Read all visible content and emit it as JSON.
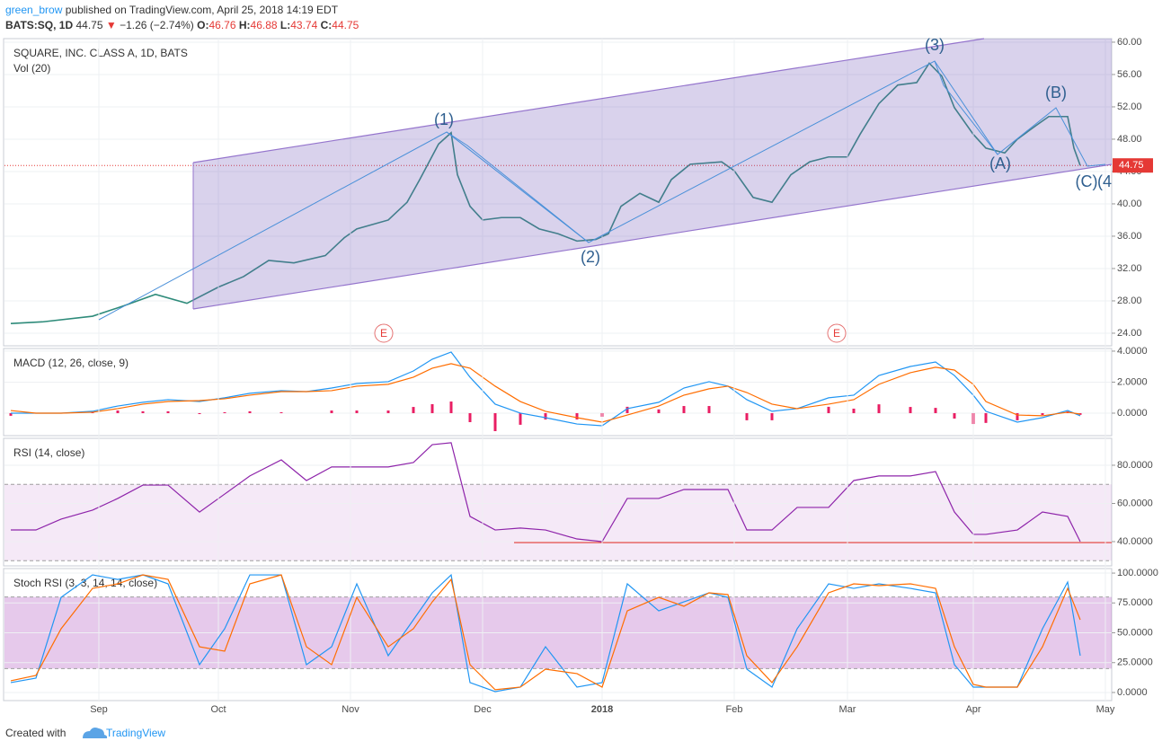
{
  "header": {
    "author": "green_brow",
    "published": "published on TradingView.com, April 25, 2018 14:19 EDT",
    "symbol": "BATS:SQ, 1D",
    "price": 44.75,
    "change": "−1.26 (−2.74%)",
    "ohlc": [
      {
        "label": "O:",
        "value": 46.76
      },
      {
        "label": "H:",
        "value": 46.88
      },
      {
        "label": "L:",
        "value": 43.74
      },
      {
        "label": "C:",
        "value": 44.75
      }
    ]
  },
  "footer": {
    "text": "Created with",
    "brand": "TradingView"
  },
  "chart_data": [
    {
      "type": "line",
      "title": "SQUARE, INC. CLASS A, 1D, BATS",
      "subtitle": "Vol (20)",
      "color": "#2e8b7a",
      "x": [
        1,
        6,
        14,
        19,
        24,
        29,
        34,
        38,
        42,
        46,
        51,
        54,
        56,
        61,
        64,
        66,
        69,
        71,
        72,
        74,
        76,
        79,
        82,
        85,
        88,
        91,
        94,
        96,
        98,
        101,
        104,
        106,
        109,
        114,
        116,
        119,
        122,
        125,
        128,
        131,
        134,
        136,
        139,
        142,
        145,
        147,
        149,
        151,
        154,
        156,
        159,
        161,
        164,
        166,
        169,
        170,
        171
      ],
      "values": [
        25.2,
        25.4,
        26.1,
        27.4,
        28.8,
        27.7,
        29.7,
        31,
        33,
        32.7,
        33.6,
        35.8,
        36.9,
        38,
        40.2,
        43,
        47.4,
        48.8,
        43.6,
        39.7,
        38,
        38.3,
        38.3,
        36.9,
        36.3,
        35.4,
        35.6,
        36.3,
        39.7,
        41.3,
        40.2,
        43,
        44.9,
        45.2,
        44.1,
        40.8,
        40.2,
        43.6,
        45.2,
        45.8,
        45.8,
        48.6,
        52.4,
        54.7,
        55,
        57.4,
        55.8,
        51.9,
        48.6,
        46.9,
        46.3,
        48,
        49.7,
        50.8,
        50.8,
        46.9,
        44.75
      ],
      "xlim": [
        0,
        176
      ],
      "ylim": [
        22.44,
        60.44
      ],
      "yticks": [
        {
          "value": 24,
          "label": "24.00"
        },
        {
          "value": 28,
          "label": "28.00"
        },
        {
          "value": 32,
          "label": "32.00"
        },
        {
          "value": 36,
          "label": "36.00"
        },
        {
          "value": 40,
          "label": "40.00"
        },
        {
          "value": 44,
          "label": "44.00"
        },
        {
          "value": 48,
          "label": "48.00"
        },
        {
          "value": 52,
          "label": "52.00"
        },
        {
          "value": 56,
          "label": "56.00"
        },
        {
          "value": 60,
          "label": "60.00"
        }
      ],
      "last_value": 44.75,
      "grid": true,
      "annotations": [
        "(1)",
        "(2)",
        "(3)",
        "(A)",
        "(B)",
        "(C)",
        "(4",
        "E",
        "E"
      ]
    },
    {
      "type": "line",
      "title": "MACD (12, 26, close, 9)",
      "x": [
        1,
        5,
        9,
        14,
        18,
        22,
        26,
        31,
        35,
        39,
        44,
        48,
        52,
        56,
        61,
        65,
        68,
        71,
        74,
        78,
        82,
        86,
        91,
        95,
        99,
        104,
        108,
        112,
        115,
        118,
        122,
        126,
        131,
        135,
        139,
        144,
        148,
        151,
        154,
        156,
        161,
        165,
        169,
        171
      ],
      "series": [
        {
          "type": "bar",
          "color": "#e91e63",
          "values": [
            -0.17,
            0,
            0,
            0.06,
            0.17,
            0.12,
            0.12,
            -0.06,
            0.06,
            0.12,
            0.06,
            0,
            0.17,
            0.17,
            0.17,
            0.4,
            0.58,
            0.75,
            -0.58,
            -1.16,
            -0.75,
            -0.41,
            -0.41,
            -0.23,
            0.41,
            0.24,
            0.46,
            0.46,
            0,
            -0.46,
            -0.46,
            0,
            0.41,
            0.29,
            0.57,
            0.4,
            0.34,
            -0.35,
            -0.7,
            -0.63,
            -0.46,
            -0.12,
            0.11,
            -0.11
          ]
        },
        {
          "type": "line",
          "color": "#2196f3",
          "values": [
            0,
            0,
            0,
            0.12,
            0.46,
            0.7,
            0.87,
            0.75,
            0.99,
            1.28,
            1.45,
            1.39,
            1.62,
            1.91,
            2.03,
            2.72,
            3.48,
            3.94,
            2.32,
            0.58,
            0,
            -0.29,
            -0.7,
            -0.81,
            0.29,
            0.7,
            1.62,
            2.03,
            1.74,
            0.87,
            0.12,
            0.29,
            0.99,
            1.16,
            2.43,
            3.01,
            3.3,
            2.43,
            1.16,
            0.12,
            -0.58,
            -0.29,
            0.17,
            -0.17
          ]
        },
        {
          "type": "line",
          "color": "#ff6d00",
          "values": [
            0.17,
            0,
            0,
            0.06,
            0.29,
            0.58,
            0.75,
            0.81,
            0.93,
            1.16,
            1.39,
            1.39,
            1.45,
            1.74,
            1.86,
            2.32,
            2.9,
            3.19,
            2.9,
            1.74,
            0.75,
            0.12,
            -0.29,
            -0.58,
            -0.12,
            0.46,
            1.16,
            1.57,
            1.74,
            1.33,
            0.58,
            0.29,
            0.58,
            0.87,
            1.86,
            2.61,
            2.96,
            2.78,
            1.86,
            0.75,
            -0.12,
            -0.17,
            0.06,
            -0.06
          ]
        }
      ],
      "xlim": [
        0,
        176
      ],
      "ylim": [
        -1.45,
        4.17
      ],
      "yticks": [
        {
          "value": 0,
          "label": "0.0000"
        },
        {
          "value": 2,
          "label": "2.0000"
        },
        {
          "value": 4,
          "label": "4.0000"
        }
      ],
      "grid": true
    },
    {
      "type": "line",
      "title": "RSI (14, close)",
      "x": [
        1,
        5,
        9,
        14,
        18,
        22,
        26,
        31,
        35,
        39,
        44,
        48,
        52,
        56,
        61,
        65,
        68,
        71,
        74,
        78,
        82,
        86,
        91,
        95,
        99,
        104,
        108,
        112,
        115,
        118,
        122,
        126,
        131,
        135,
        139,
        144,
        148,
        151,
        154,
        156,
        161,
        165,
        169,
        171
      ],
      "series": [
        {
          "type": "line",
          "color": "#8e24aa",
          "values": [
            46.1,
            46.1,
            51.8,
            56.5,
            62.6,
            69.6,
            69.6,
            55.5,
            64.9,
            74.4,
            82.8,
            72.0,
            79.1,
            79.1,
            79.1,
            81.4,
            90.8,
            91.8,
            53.2,
            46.1,
            47.1,
            46.1,
            41.4,
            40.0,
            62.6,
            62.6,
            67.3,
            67.3,
            67.3,
            46.1,
            46.1,
            57.9,
            57.9,
            72.0,
            74.4,
            74.4,
            76.7,
            55.5,
            43.8,
            43.8,
            46.1,
            55.5,
            53.2,
            40.0
          ]
        }
      ],
      "xlim": [
        0,
        176
      ],
      "ylim": [
        27.3,
        94.1
      ],
      "band": [
        30,
        70
      ],
      "band_color": "rgba(156,39,176,0.10)",
      "hline": 39.5,
      "hline_from": 81,
      "hline_color": "#e53935",
      "yticks": [
        {
          "value": 40,
          "label": "40.0000"
        },
        {
          "value": 60,
          "label": "60.0000"
        },
        {
          "value": 80,
          "label": "80.0000"
        }
      ],
      "grid": true
    },
    {
      "type": "line",
      "title": "Stoch RSI (3, 3, 14, 14, close)",
      "x": [
        1,
        5,
        9,
        14,
        18,
        22,
        26,
        31,
        35,
        39,
        44,
        48,
        52,
        56,
        61,
        65,
        68,
        71,
        74,
        78,
        82,
        86,
        91,
        95,
        99,
        104,
        108,
        112,
        115,
        118,
        122,
        126,
        131,
        135,
        139,
        144,
        148,
        151,
        154,
        156,
        161,
        165,
        169,
        171
      ],
      "series": [
        {
          "type": "line",
          "color": "#2196f3",
          "values": [
            8.3,
            12,
            79.7,
            98.5,
            94.7,
            98.5,
            91,
            23.3,
            53.4,
            98.5,
            98.5,
            23.3,
            38.3,
            91,
            30.8,
            60.9,
            83.5,
            98.5,
            8.3,
            0.75,
            4.5,
            38.3,
            4.5,
            8.3,
            91,
            68.4,
            75.9,
            83.5,
            79.7,
            19.5,
            4.5,
            53.4,
            91,
            87.2,
            91,
            87.2,
            83.5,
            23.3,
            4.5,
            4.5,
            4.5,
            53.4,
            92.5,
            30.8
          ]
        },
        {
          "type": "line",
          "color": "#ff6d00",
          "values": [
            9.8,
            14.3,
            53.4,
            87.2,
            91,
            98.5,
            94.7,
            38.3,
            34.6,
            91,
            98.5,
            38.3,
            23.3,
            79.7,
            38.3,
            53.4,
            75.9,
            94.7,
            23.3,
            2.3,
            4.5,
            19.5,
            15.8,
            4.5,
            68.4,
            79.7,
            72.2,
            83.5,
            82,
            30.8,
            8.3,
            38.3,
            83.5,
            91,
            89.5,
            91,
            87.2,
            38.3,
            6.8,
            4.5,
            4.5,
            38.3,
            87.2,
            60.9
          ]
        }
      ],
      "xlim": [
        0,
        176
      ],
      "ylim": [
        -6.8,
        103.8
      ],
      "band": [
        20,
        80
      ],
      "band_color": "rgba(156,39,176,0.25)",
      "yticks": [
        {
          "value": 0,
          "label": "0.0000"
        },
        {
          "value": 25,
          "label": "25.0000"
        },
        {
          "value": 50,
          "label": "50.0000"
        },
        {
          "value": 75,
          "label": "75.0000"
        },
        {
          "value": 100,
          "label": "100.0000"
        }
      ],
      "xticks": [
        {
          "value": 15,
          "label": "Sep"
        },
        {
          "value": 34,
          "label": "Oct"
        },
        {
          "value": 55,
          "label": "Nov"
        },
        {
          "value": 76,
          "label": "Dec"
        },
        {
          "value": 95,
          "label": "2018"
        },
        {
          "value": 116,
          "label": "Feb"
        },
        {
          "value": 134,
          "label": "Mar"
        },
        {
          "value": 154,
          "label": "Apr"
        },
        {
          "value": 175,
          "label": "May"
        }
      ],
      "grid": true
    }
  ]
}
